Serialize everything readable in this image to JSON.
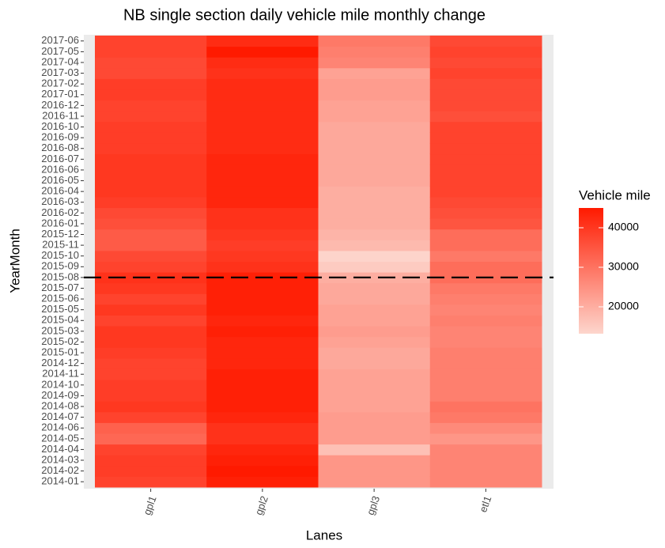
{
  "chart_data": {
    "type": "heatmap",
    "title": "NB single section daily vehicle mile monthly change",
    "x_label": "Lanes",
    "y_label": "YearMonth",
    "categories": [
      "2014-01",
      "2014-02",
      "2014-03",
      "2014-04",
      "2014-05",
      "2014-06",
      "2014-07",
      "2014-08",
      "2014-09",
      "2014-10",
      "2014-11",
      "2014-12",
      "2015-01",
      "2015-02",
      "2015-03",
      "2015-04",
      "2015-05",
      "2015-06",
      "2015-07",
      "2015-08",
      "2015-09",
      "2015-10",
      "2015-11",
      "2015-12",
      "2016-01",
      "2016-02",
      "2016-03",
      "2016-04",
      "2016-05",
      "2016-06",
      "2016-07",
      "2016-08",
      "2016-09",
      "2016-10",
      "2016-11",
      "2016-12",
      "2017-01",
      "2017-02",
      "2017-03",
      "2017-04",
      "2017-05",
      "2017-06"
    ],
    "series": [
      {
        "name": "gpl1",
        "values": [
          38000,
          39000,
          39000,
          38000,
          32000,
          33000,
          38000,
          40000,
          39000,
          39000,
          38000,
          38000,
          39000,
          40000,
          40000,
          38000,
          40000,
          38000,
          40000,
          41000,
          38000,
          37000,
          34000,
          34000,
          36000,
          37000,
          39000,
          40000,
          40000,
          40000,
          40000,
          39000,
          39000,
          39000,
          38000,
          38000,
          39000,
          39000,
          37000,
          37000,
          38000,
          38000
        ]
      },
      {
        "name": "gpl2",
        "values": [
          44000,
          45000,
          44000,
          43000,
          41000,
          41000,
          43000,
          44000,
          44000,
          44000,
          44000,
          43000,
          43000,
          43000,
          44000,
          43000,
          44000,
          44000,
          44000,
          44000,
          41000,
          40000,
          39000,
          40000,
          41000,
          41000,
          43000,
          43000,
          43000,
          43000,
          43000,
          42000,
          42000,
          42000,
          42000,
          42000,
          42000,
          42000,
          41000,
          42000,
          45000,
          42000
        ]
      },
      {
        "name": "gpl3",
        "values": [
          24000,
          24000,
          24000,
          17000,
          23000,
          23000,
          23000,
          22000,
          22000,
          22000,
          22000,
          21000,
          21000,
          22000,
          23000,
          22000,
          22000,
          21000,
          21000,
          20000,
          15000,
          13500,
          18000,
          19000,
          20000,
          20000,
          20000,
          20000,
          21000,
          21000,
          21000,
          21000,
          21000,
          21000,
          22000,
          22000,
          23000,
          23000,
          22000,
          27000,
          28000,
          29000
        ]
      },
      {
        "name": "etl1",
        "values": [
          27000,
          27000,
          27000,
          27000,
          24000,
          26000,
          29000,
          30000,
          28000,
          28000,
          28000,
          28000,
          28000,
          27000,
          27000,
          28000,
          27000,
          28000,
          29000,
          31000,
          31000,
          29000,
          31000,
          31000,
          35000,
          36000,
          37000,
          38000,
          38000,
          38000,
          38000,
          38000,
          38000,
          38000,
          36000,
          37000,
          37000,
          37000,
          38000,
          37000,
          38000,
          37000
        ]
      }
    ],
    "reference_line": {
      "category": "2015-08",
      "color": "#000000"
    },
    "colorbar": {
      "title": "Vehicle mile",
      "lim": [
        13200,
        45000
      ],
      "ticks": [
        20000,
        30000,
        40000
      ],
      "colors": [
        "#fdd6cd",
        "#ff1a00"
      ]
    }
  }
}
